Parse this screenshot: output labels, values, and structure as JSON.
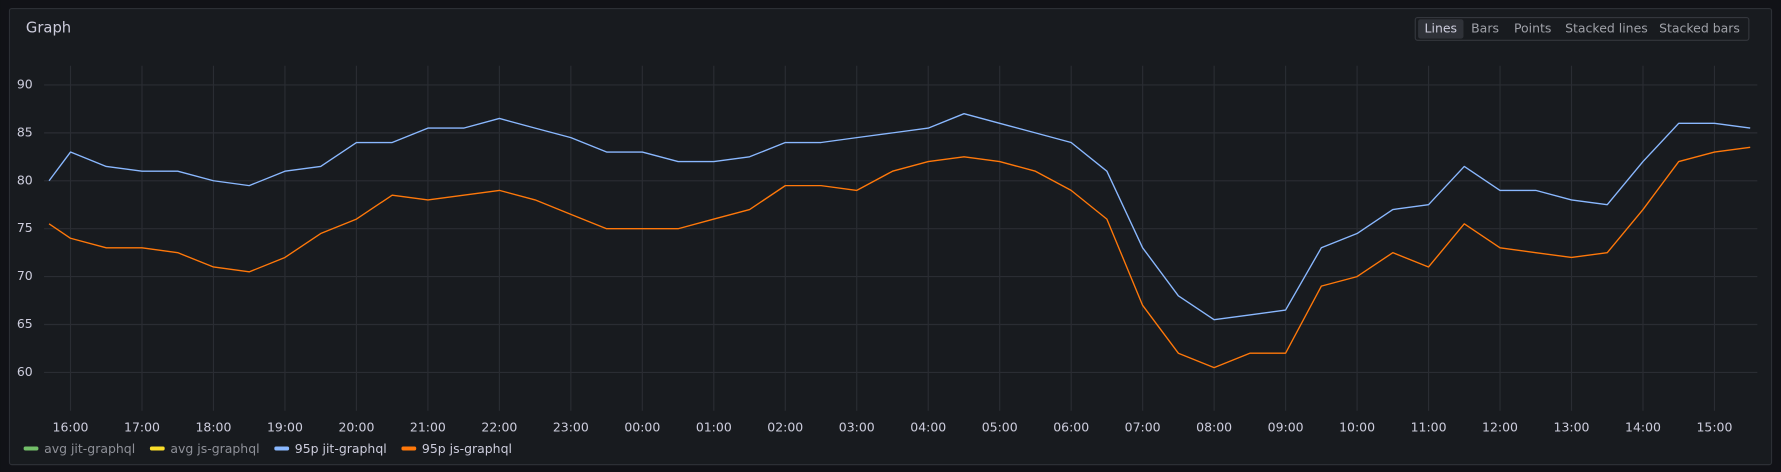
{
  "panel": {
    "title": "Graph",
    "modes": [
      "Lines",
      "Bars",
      "Points",
      "Stacked lines",
      "Stacked bars"
    ],
    "active_mode": "Lines"
  },
  "chart_data": {
    "type": "line",
    "grid": true,
    "legend": "bottom-left",
    "x": [
      -0.3,
      0,
      0.5,
      1,
      1.5,
      2,
      2.5,
      3,
      3.5,
      4,
      4.5,
      5,
      5.5,
      6,
      6.5,
      7,
      7.5,
      8,
      8.5,
      9,
      9.5,
      10,
      10.5,
      11,
      11.5,
      12,
      12.5,
      13,
      13.5,
      14,
      14.5,
      15,
      15.5,
      16,
      16.5,
      17,
      17.5,
      18,
      18.5,
      19,
      19.5,
      20,
      20.5,
      21,
      21.5,
      22,
      22.5,
      23,
      23.5
    ],
    "xlim": [
      -0.37,
      23.6
    ],
    "xticks": [
      {
        "value": 0,
        "label": "16:00"
      },
      {
        "value": 1,
        "label": "17:00"
      },
      {
        "value": 2,
        "label": "18:00"
      },
      {
        "value": 3,
        "label": "19:00"
      },
      {
        "value": 4,
        "label": "20:00"
      },
      {
        "value": 5,
        "label": "21:00"
      },
      {
        "value": 6,
        "label": "22:00"
      },
      {
        "value": 7,
        "label": "23:00"
      },
      {
        "value": 8,
        "label": "00:00"
      },
      {
        "value": 9,
        "label": "01:00"
      },
      {
        "value": 10,
        "label": "02:00"
      },
      {
        "value": 11,
        "label": "03:00"
      },
      {
        "value": 12,
        "label": "04:00"
      },
      {
        "value": 13,
        "label": "05:00"
      },
      {
        "value": 14,
        "label": "06:00"
      },
      {
        "value": 15,
        "label": "07:00"
      },
      {
        "value": 16,
        "label": "08:00"
      },
      {
        "value": 17,
        "label": "09:00"
      },
      {
        "value": 18,
        "label": "10:00"
      },
      {
        "value": 19,
        "label": "11:00"
      },
      {
        "value": 20,
        "label": "12:00"
      },
      {
        "value": 21,
        "label": "13:00"
      },
      {
        "value": 22,
        "label": "14:00"
      },
      {
        "value": 23,
        "label": "15:00"
      }
    ],
    "ylim": [
      56,
      92
    ],
    "yticks": [
      60,
      65,
      70,
      75,
      80,
      85,
      90
    ],
    "series": [
      {
        "name": "avg jit-graphql",
        "color": "#73bf69",
        "values": [
          null,
          null,
          null,
          null,
          null,
          null,
          null,
          null,
          null,
          null,
          null,
          null,
          null,
          null,
          null,
          null,
          null,
          null,
          null,
          null,
          null,
          null,
          null,
          null,
          null,
          null,
          null,
          null,
          null,
          null,
          null,
          null,
          null,
          null,
          null,
          null,
          null,
          null,
          null,
          null,
          null,
          null,
          null,
          null,
          null,
          null,
          null,
          null,
          null
        ]
      },
      {
        "name": "avg js-graphql",
        "color": "#fade2a",
        "values": [
          null,
          null,
          null,
          null,
          null,
          null,
          null,
          null,
          null,
          null,
          null,
          null,
          null,
          null,
          null,
          null,
          null,
          null,
          null,
          null,
          null,
          null,
          null,
          null,
          null,
          null,
          null,
          null,
          null,
          null,
          null,
          null,
          null,
          null,
          null,
          null,
          null,
          null,
          null,
          null,
          null,
          null,
          null,
          null,
          null,
          null,
          null,
          null,
          null
        ]
      },
      {
        "name": "95p jit-graphql",
        "color": "#8ab8ff",
        "values": [
          80,
          83,
          81.5,
          81,
          81,
          80,
          79.5,
          81,
          81.5,
          84,
          84,
          85.5,
          85.5,
          86.5,
          85.5,
          84.5,
          83,
          83,
          82,
          82,
          82.5,
          84,
          84,
          84.5,
          85,
          85.5,
          87,
          86,
          85,
          84,
          81,
          73,
          68,
          65.5,
          66,
          66.5,
          73,
          74.5,
          77,
          77.5,
          81.5,
          79,
          79,
          78,
          77.5,
          82,
          86,
          86,
          85.5
        ]
      },
      {
        "name": "95p js-graphql",
        "color": "#ff780a",
        "values": [
          75.5,
          74,
          73,
          73,
          72.5,
          71,
          70.5,
          72,
          74.5,
          76,
          78.5,
          78,
          78.5,
          79,
          78,
          76.5,
          75,
          75,
          75,
          76,
          77,
          79.5,
          79.5,
          79,
          81,
          82,
          82.5,
          82,
          81,
          79,
          76,
          67,
          62,
          60.5,
          62,
          62,
          69,
          70,
          72.5,
          71,
          75.5,
          73,
          72.5,
          72,
          72.5,
          77,
          82,
          83,
          83.5
        ]
      }
    ]
  }
}
